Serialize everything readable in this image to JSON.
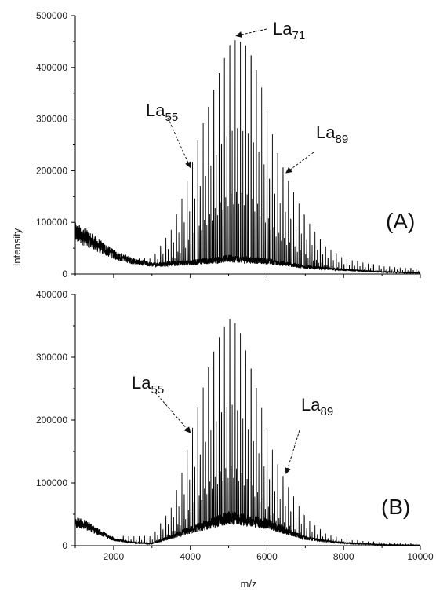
{
  "chart_data": [
    {
      "panel": "(A)",
      "type": "line",
      "title": "",
      "xlabel": "",
      "ylabel": "Intensity",
      "xlim": [
        1000,
        10000
      ],
      "ylim": [
        0,
        500000
      ],
      "x_ticks": [
        2000,
        4000,
        6000,
        8000,
        10000
      ],
      "y_ticks": [
        0,
        100000,
        200000,
        300000,
        400000,
        500000
      ],
      "y_tick_labels": [
        "0",
        "100000",
        "200000",
        "300000",
        "400000",
        "500000"
      ],
      "grid": false,
      "series": [
        {
          "peak_envelope": {
            "x": [
              3000,
              3500,
              3800,
              4000,
              4200,
              4500,
              4800,
              5000,
              5200,
              5500,
              5800,
              6000,
              6200,
              6500,
              7000,
              7500,
              8000,
              9000,
              10000
            ],
            "y": [
              30000,
              85000,
              150000,
              200000,
              260000,
              330000,
              400000,
              440000,
              455000,
              440000,
              380000,
              320000,
              250000,
              190000,
              110000,
              55000,
              30000,
              15000,
              10000
            ]
          },
          "baseline": {
            "x": [
              1000,
              1300,
              1600,
              2000,
              2500,
              3000,
              4000,
              5000,
              6000,
              7000,
              8000,
              9000,
              10000
            ],
            "y": [
              80000,
              70000,
              55000,
              38000,
              25000,
              18000,
              22000,
              30000,
              25000,
              14000,
              8000,
              4000,
              2000
            ]
          }
        }
      ],
      "annotations": [
        {
          "text": "La",
          "sub": "71",
          "x": 5200,
          "y": 455000
        },
        {
          "text": "La",
          "sub": "55",
          "x": 4000,
          "y": 200000
        },
        {
          "text": "La",
          "sub": "89",
          "x": 6500,
          "y": 190000
        }
      ]
    },
    {
      "panel": "(B)",
      "type": "line",
      "title": "",
      "xlabel": "m/z",
      "ylabel": "",
      "xlim": [
        1000,
        10000
      ],
      "ylim": [
        0,
        400000
      ],
      "x_ticks": [
        2000,
        4000,
        6000,
        8000,
        10000
      ],
      "x_tick_labels": [
        "2000",
        "4000",
        "6000",
        "8000",
        "10000"
      ],
      "y_ticks": [
        0,
        100000,
        200000,
        300000,
        400000
      ],
      "y_tick_labels": [
        "0",
        "100000",
        "200000",
        "300000",
        "400000"
      ],
      "grid": false,
      "series": [
        {
          "peak_envelope": {
            "x": [
              3000,
              3500,
              3800,
              4000,
              4200,
              4500,
              4800,
              5000,
              5100,
              5300,
              5500,
              5800,
              6000,
              6200,
              6500,
              7000,
              7500,
              8000,
              9000,
              10000
            ],
            "y": [
              15000,
              60000,
              120000,
              175000,
              220000,
              290000,
              340000,
              360000,
              362000,
              340000,
              300000,
              235000,
              185000,
              140000,
              100000,
              45000,
              20000,
              10000,
              5000,
              3000
            ]
          },
          "baseline": {
            "x": [
              1000,
              1300,
              1600,
              2000,
              2500,
              3000,
              4000,
              5000,
              6000,
              7000,
              8000,
              9000,
              10000
            ],
            "y": [
              38000,
              32000,
              22000,
              10000,
              5000,
              3000,
              25000,
              45000,
              35000,
              12000,
              4000,
              1500,
              800
            ]
          }
        }
      ],
      "annotations": [
        {
          "text": "La",
          "sub": "55",
          "x": 4000,
          "y": 175000
        },
        {
          "text": "La",
          "sub": "89",
          "x": 6500,
          "y": 110000
        }
      ]
    }
  ]
}
